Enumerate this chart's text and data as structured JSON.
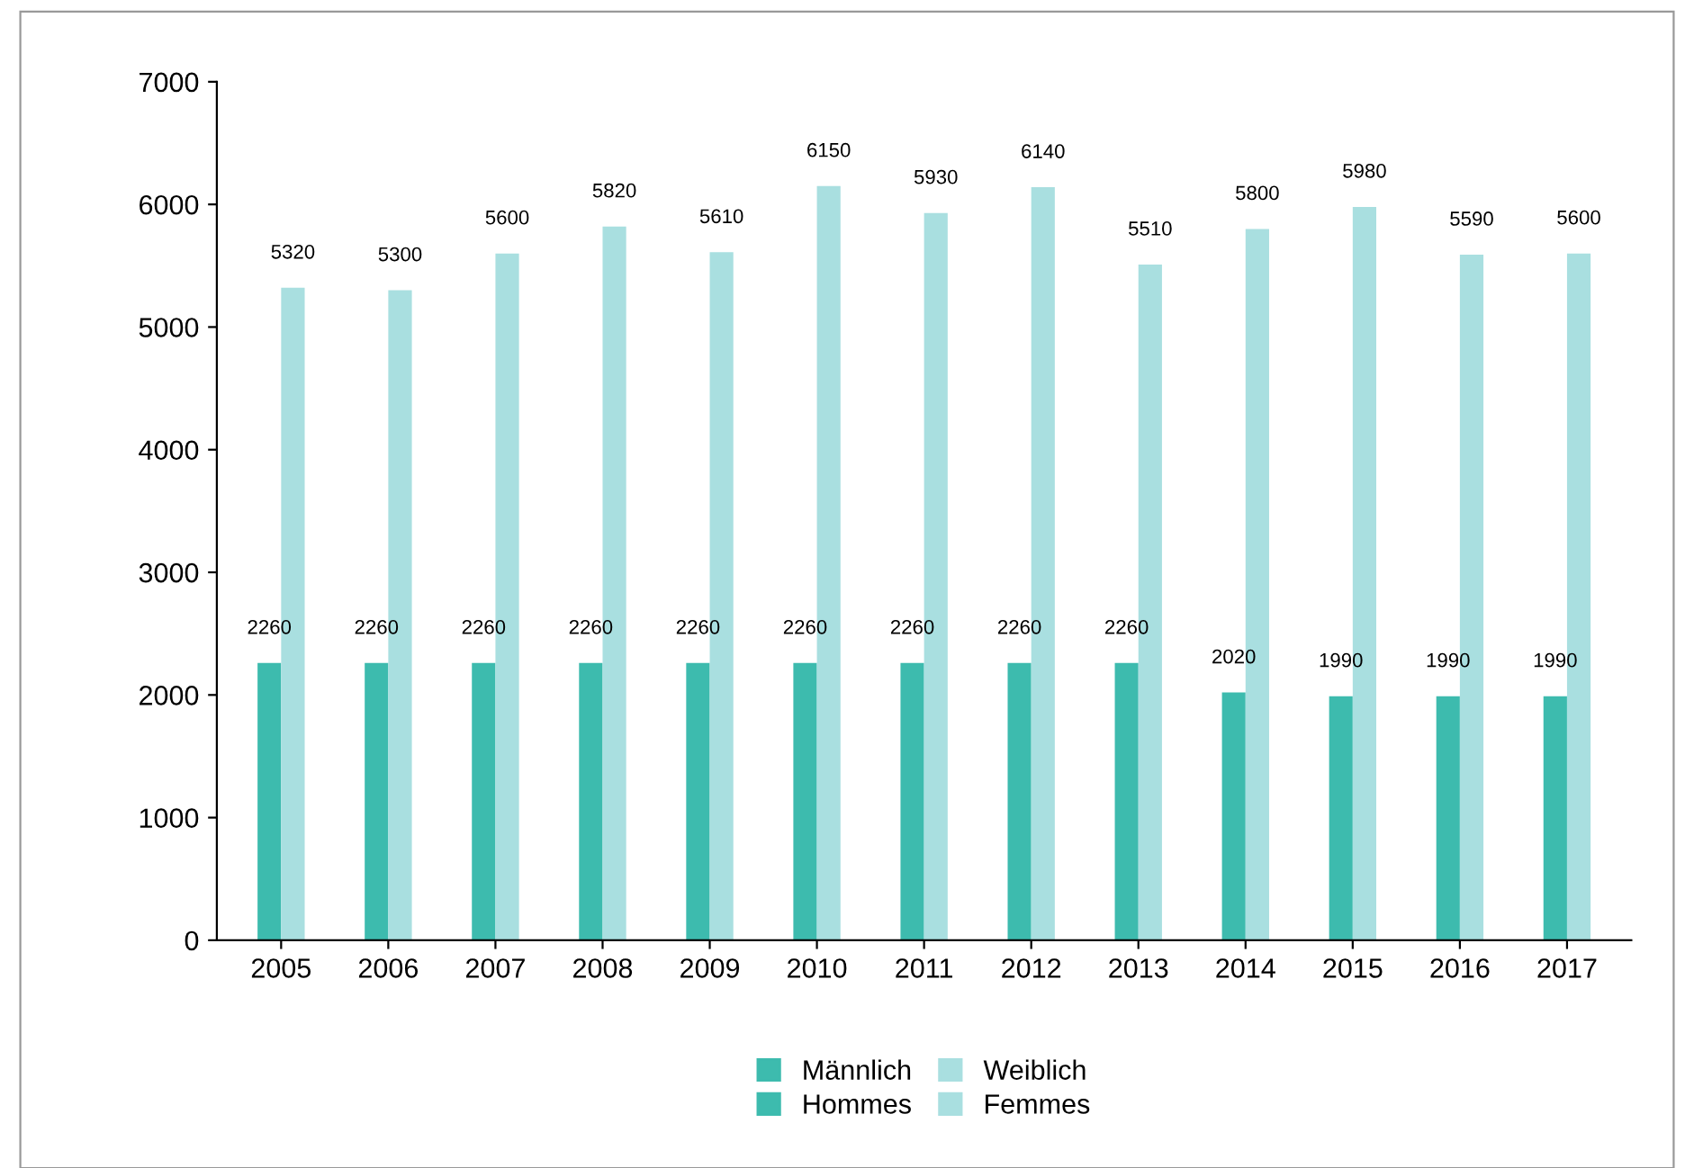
{
  "chart_data": {
    "type": "bar",
    "categories": [
      "2005",
      "2006",
      "2007",
      "2008",
      "2009",
      "2010",
      "2011",
      "2012",
      "2013",
      "2014",
      "2015",
      "2016",
      "2017"
    ],
    "series": [
      {
        "name": "Männlich\nHommes",
        "color": "#3dbbae",
        "values": [
          2260,
          2260,
          2260,
          2260,
          2260,
          2260,
          2260,
          2260,
          2260,
          2020,
          1990,
          1990,
          1990
        ]
      },
      {
        "name": "Weiblich\nFemmes",
        "color": "#a9dfe0",
        "values": [
          5320,
          5300,
          5600,
          5820,
          5610,
          6150,
          5930,
          6140,
          5510,
          5800,
          5980,
          5590,
          5600
        ]
      }
    ],
    "ylim": [
      0,
      7000
    ],
    "yticks": [
      0,
      1000,
      2000,
      3000,
      4000,
      5000,
      6000,
      7000
    ],
    "data_labels": true,
    "grid": false,
    "legend": "bottom"
  }
}
